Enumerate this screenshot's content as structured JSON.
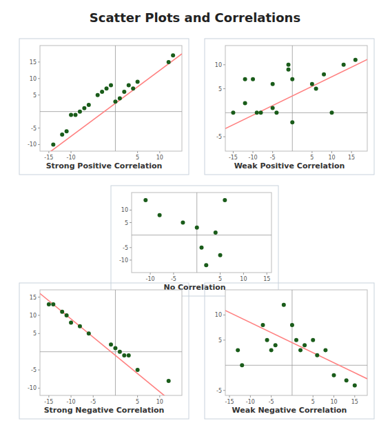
{
  "title": "Scatter Plots and Correlations",
  "chart_data": [
    {
      "type": "scatter",
      "title": "Strong Positive Correlation",
      "x": [
        -14,
        -12,
        -11,
        -10,
        -9,
        -8,
        -7,
        -6,
        -4,
        -3,
        -2,
        -1,
        0,
        1,
        2,
        3,
        4,
        5,
        12,
        13
      ],
      "values": [
        -10,
        -7,
        -6,
        -1,
        -1,
        0,
        1,
        2,
        5,
        6,
        7,
        8,
        3,
        4,
        6,
        8,
        7,
        9,
        15,
        17
      ],
      "xlim": [
        -17,
        15
      ],
      "ylim": [
        -12,
        20
      ],
      "xticks": [
        -15,
        -10,
        5,
        10
      ],
      "yticks": [
        -10,
        -5,
        5,
        10,
        15
      ],
      "color": "#1a5c1a",
      "trend": {
        "slope": 1.0,
        "intercept": 2.5,
        "color": "#ff8080"
      }
    },
    {
      "type": "scatter",
      "title": "Weak Positive Correlation",
      "x": [
        -15,
        -12,
        -12,
        -10,
        -9,
        -8,
        -5,
        -5,
        -4,
        -1,
        -1,
        0,
        0,
        5,
        6,
        8,
        10,
        13,
        16
      ],
      "values": [
        0,
        7,
        2,
        7,
        0,
        0,
        6,
        1,
        0,
        10,
        9,
        -2,
        7,
        6,
        5,
        8,
        0,
        10,
        11
      ],
      "xlim": [
        -17,
        19
      ],
      "ylim": [
        -8,
        14
      ],
      "xticks": [
        -15,
        -10,
        -5,
        5,
        10,
        15
      ],
      "yticks": [
        -5,
        5,
        10
      ],
      "color": "#1a5c1a",
      "trend": {
        "slope": 0.4,
        "intercept": 3.5,
        "color": "#ff8080"
      }
    },
    {
      "type": "scatter",
      "title": "No Correlation",
      "x": [
        -11,
        -8,
        -3,
        0,
        1,
        2,
        4,
        5,
        6
      ],
      "values": [
        14,
        8,
        5,
        3,
        -5,
        -12,
        1,
        -8,
        14
      ],
      "xlim": [
        -14,
        16
      ],
      "ylim": [
        -15,
        17
      ],
      "xticks": [
        -10,
        -5,
        5,
        10,
        15
      ],
      "yticks": [
        -10,
        -5,
        5,
        10
      ],
      "color": "#1a5c1a"
    },
    {
      "type": "scatter",
      "title": "Strong Negative Correlation",
      "x": [
        -15,
        -14,
        -12,
        -11,
        -10,
        -8,
        -6,
        -1,
        0,
        1,
        2,
        3,
        5,
        12
      ],
      "values": [
        13,
        13,
        11,
        10,
        8,
        7,
        5,
        2,
        1,
        0,
        -1,
        -1,
        -5,
        -8
      ],
      "xlim": [
        -17,
        15
      ],
      "ylim": [
        -12,
        17
      ],
      "xticks": [
        -15,
        -10,
        -5,
        5,
        10
      ],
      "yticks": [
        -10,
        -5,
        5,
        10,
        15
      ],
      "color": "#1a5c1a",
      "trend": {
        "slope": -1.0,
        "intercept": -1.0,
        "color": "#ff8080"
      }
    },
    {
      "type": "scatter",
      "title": "Weak Negative Correlation",
      "x": [
        -13,
        -12,
        -7,
        -6,
        -5,
        -4,
        -2,
        0,
        1,
        2,
        3,
        5,
        6,
        8,
        10,
        13,
        15
      ],
      "values": [
        3,
        0,
        8,
        5,
        3,
        4,
        12,
        8,
        5,
        3,
        4,
        5,
        2,
        3,
        -2,
        -3,
        -4
      ],
      "xlim": [
        -16,
        18
      ],
      "ylim": [
        -6,
        15
      ],
      "xticks": [
        -15,
        -10,
        -5,
        5,
        10,
        15
      ],
      "yticks": [
        -5,
        5,
        10
      ],
      "color": "#1a5c1a",
      "trend": {
        "slope": -0.4,
        "intercept": 4.5,
        "color": "#ff8080"
      }
    }
  ]
}
